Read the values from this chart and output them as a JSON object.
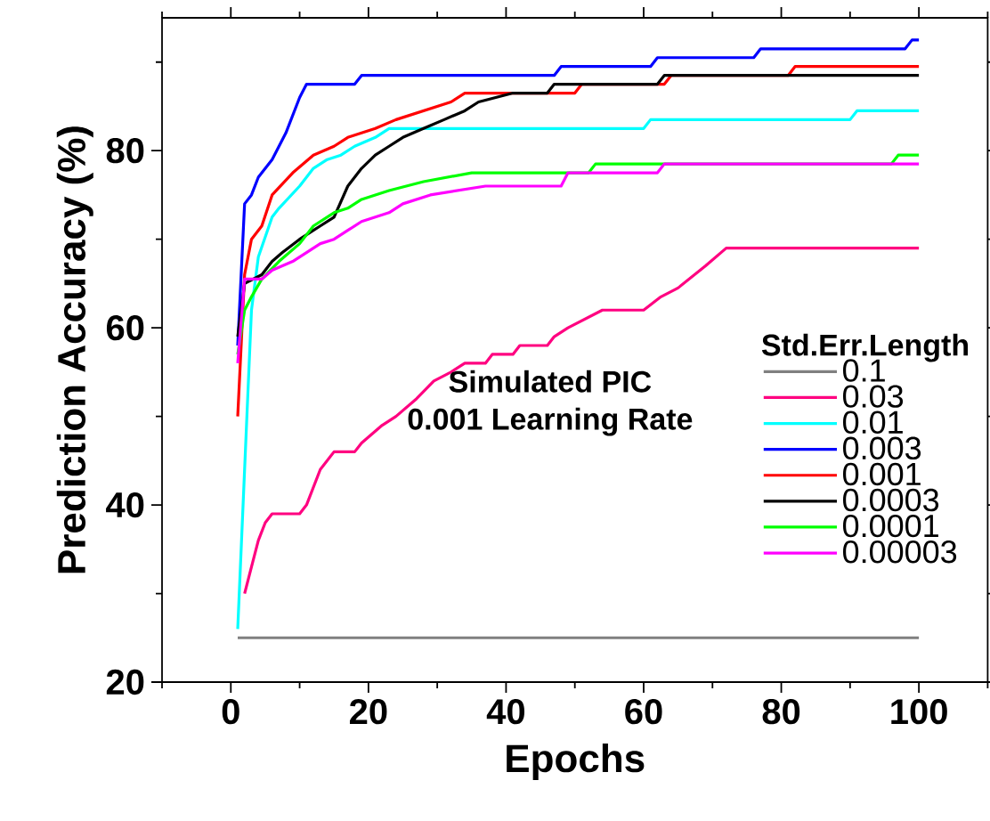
{
  "chart_data": {
    "type": "line",
    "xlabel": "Epochs",
    "ylabel": "Prediction Accuracy (%)",
    "legend_title": "Std.Err.Length",
    "annotations": [
      "Simulated PIC",
      "0.001 Learning Rate"
    ],
    "xlim": [
      -10,
      110
    ],
    "ylim": [
      20,
      95
    ],
    "xticks": [
      {
        "value": -10,
        "label": null
      },
      0,
      {
        "value": 10,
        "label": null
      },
      20,
      {
        "value": 30,
        "label": null
      },
      40,
      {
        "value": 50,
        "label": null
      },
      60,
      {
        "value": 70,
        "label": null
      },
      80,
      {
        "value": 90,
        "label": null
      },
      100,
      {
        "value": 110,
        "label": null
      }
    ],
    "yticks": [
      20,
      {
        "value": 30,
        "label": null
      },
      40,
      {
        "value": 50,
        "label": null
      },
      60,
      {
        "value": 70,
        "label": null
      },
      80,
      {
        "value": 90,
        "label": null
      }
    ],
    "legend": "right",
    "marker": "none",
    "line_style": "solid",
    "series": [
      {
        "name": "0.1",
        "color": "#808080",
        "x": [
          1,
          100
        ],
        "values": [
          25,
          25
        ]
      },
      {
        "name": "0.03",
        "color": "#ff0080",
        "x": [
          2,
          3,
          4,
          5,
          6,
          10,
          11,
          13,
          15,
          18,
          19,
          22,
          24,
          27,
          29.5,
          32,
          34,
          37,
          38,
          41,
          42,
          46,
          47,
          49,
          54,
          60,
          62.5,
          65,
          69,
          72,
          100
        ],
        "values": [
          30,
          33,
          36,
          38,
          39,
          39,
          40,
          44,
          46,
          46,
          47,
          49,
          50,
          52,
          54,
          55,
          56,
          56,
          57,
          57,
          58,
          58,
          59,
          60,
          62,
          62,
          63.5,
          64.5,
          67,
          69,
          69
        ]
      },
      {
        "name": "0.01",
        "color": "#00ffff",
        "x": [
          1,
          3,
          4,
          6,
          7,
          10,
          12,
          14,
          16,
          18,
          21,
          23,
          60,
          61,
          90,
          91,
          100
        ],
        "values": [
          26,
          62,
          68,
          72.5,
          73.5,
          76,
          78,
          79,
          79.5,
          80.5,
          81.5,
          82.5,
          82.5,
          83.5,
          83.5,
          84.5,
          84.5
        ]
      },
      {
        "name": "0.003",
        "color": "#0000ff",
        "x": [
          1,
          2,
          3,
          4,
          6,
          8,
          10,
          11,
          18,
          19,
          47,
          48,
          61,
          62,
          76,
          77,
          98,
          99,
          100
        ],
        "values": [
          58,
          74,
          75,
          77,
          79,
          82,
          86,
          87.5,
          87.5,
          88.5,
          88.5,
          89.5,
          89.5,
          90.5,
          90.5,
          91.5,
          91.5,
          92.5,
          92.5
        ]
      },
      {
        "name": "0.001",
        "color": "#ff0000",
        "x": [
          1,
          2,
          3,
          4.5,
          6,
          9,
          12,
          15,
          17,
          21,
          24,
          28,
          32,
          34,
          50,
          51,
          63,
          64,
          81,
          82,
          100
        ],
        "values": [
          50,
          66,
          70,
          71.5,
          75,
          77.5,
          79.5,
          80.5,
          81.5,
          82.5,
          83.5,
          84.5,
          85.5,
          86.5,
          86.5,
          87.5,
          87.5,
          88.5,
          88.5,
          89.5,
          89.5
        ]
      },
      {
        "name": "0.0003",
        "color": "#000000",
        "x": [
          1,
          2,
          4.5,
          6,
          7.5,
          10,
          13,
          15,
          17,
          19,
          21,
          23,
          25,
          28,
          31,
          34,
          36,
          41,
          46,
          47,
          62,
          63,
          100
        ],
        "values": [
          59,
          65,
          66,
          67.5,
          68.5,
          70,
          71.5,
          72.5,
          76,
          78,
          79.5,
          80.5,
          81.5,
          82.5,
          83.5,
          84.5,
          85.5,
          86.5,
          86.5,
          87.5,
          87.5,
          88.5,
          88.5
        ]
      },
      {
        "name": "0.0001",
        "color": "#00ff00",
        "x": [
          1,
          2,
          3,
          4.5,
          7,
          10,
          12,
          15,
          17,
          19,
          23,
          28,
          35,
          52,
          53,
          96,
          97,
          100
        ],
        "values": [
          57,
          62,
          63.5,
          65.5,
          67.5,
          69.5,
          71.5,
          73,
          73.5,
          74.5,
          75.5,
          76.5,
          77.5,
          77.5,
          78.5,
          78.5,
          79.5,
          79.5
        ]
      },
      {
        "name": "0.00003",
        "color": "#ff00ff",
        "x": [
          1,
          2,
          4.5,
          6,
          9,
          11,
          13,
          15,
          17,
          19,
          23,
          25,
          29,
          37,
          48,
          49,
          62,
          63,
          100
        ],
        "values": [
          56,
          65.5,
          65.5,
          66.5,
          67.5,
          68.5,
          69.5,
          70,
          71,
          72,
          73,
          74,
          75,
          76,
          76,
          77.5,
          77.5,
          78.5,
          78.5
        ]
      }
    ]
  }
}
